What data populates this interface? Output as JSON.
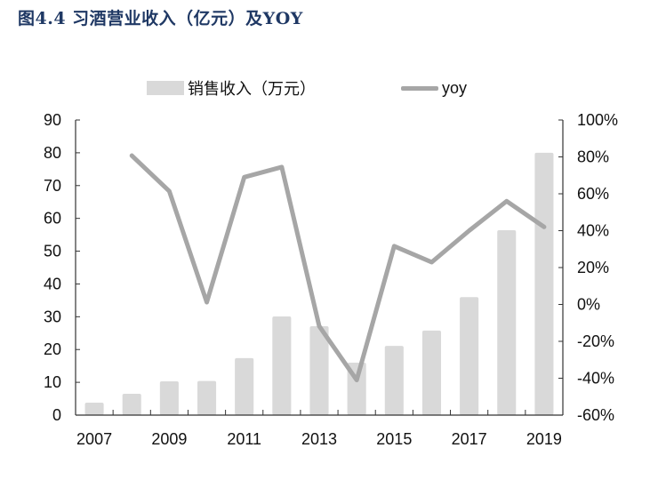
{
  "title": "图4.4 习酒营业收入（亿元）及YOY",
  "legend": {
    "bar_label": "销售收入（万元）",
    "line_label": "yoy"
  },
  "colors": {
    "title": "#1f3864",
    "bar": "#d9d9d9",
    "line": "#a6a6a6",
    "axis": "#333333"
  },
  "chart_data": {
    "type": "bar+line",
    "title": "图4.4 习酒营业收入（亿元）及YOY",
    "categories": [
      "2007",
      "2008",
      "2009",
      "2010",
      "2011",
      "2012",
      "2013",
      "2014",
      "2015",
      "2016",
      "2017",
      "2018",
      "2019"
    ],
    "x_tick_labels": [
      "2007",
      "2009",
      "2011",
      "2013",
      "2015",
      "2017",
      "2019"
    ],
    "series": [
      {
        "name": "销售收入（万元）",
        "type": "bar",
        "axis": "left",
        "values": [
          3.8,
          6.5,
          10.3,
          10.4,
          17.4,
          30.1,
          27.1,
          16.0,
          21.1,
          25.8,
          36.0,
          56.4,
          80.0
        ]
      },
      {
        "name": "yoy",
        "type": "line",
        "axis": "right",
        "unit": "%",
        "values": [
          null,
          80.7,
          61.4,
          1.2,
          69.0,
          74.5,
          -11.8,
          -41.0,
          31.6,
          22.9,
          40.0,
          56.0,
          42.0
        ]
      }
    ],
    "left_axis": {
      "min": 0,
      "max": 90,
      "step": 10,
      "ticks": [
        "0",
        "10",
        "20",
        "30",
        "40",
        "50",
        "60",
        "70",
        "80",
        "90"
      ]
    },
    "right_axis": {
      "min": -60,
      "max": 100,
      "step": 20,
      "ticks": [
        "-60%",
        "-40%",
        "-20%",
        "0%",
        "20%",
        "40%",
        "60%",
        "80%",
        "100%"
      ]
    },
    "xlabel": "",
    "ylabel": "",
    "grid": false,
    "legend_position": "top"
  }
}
